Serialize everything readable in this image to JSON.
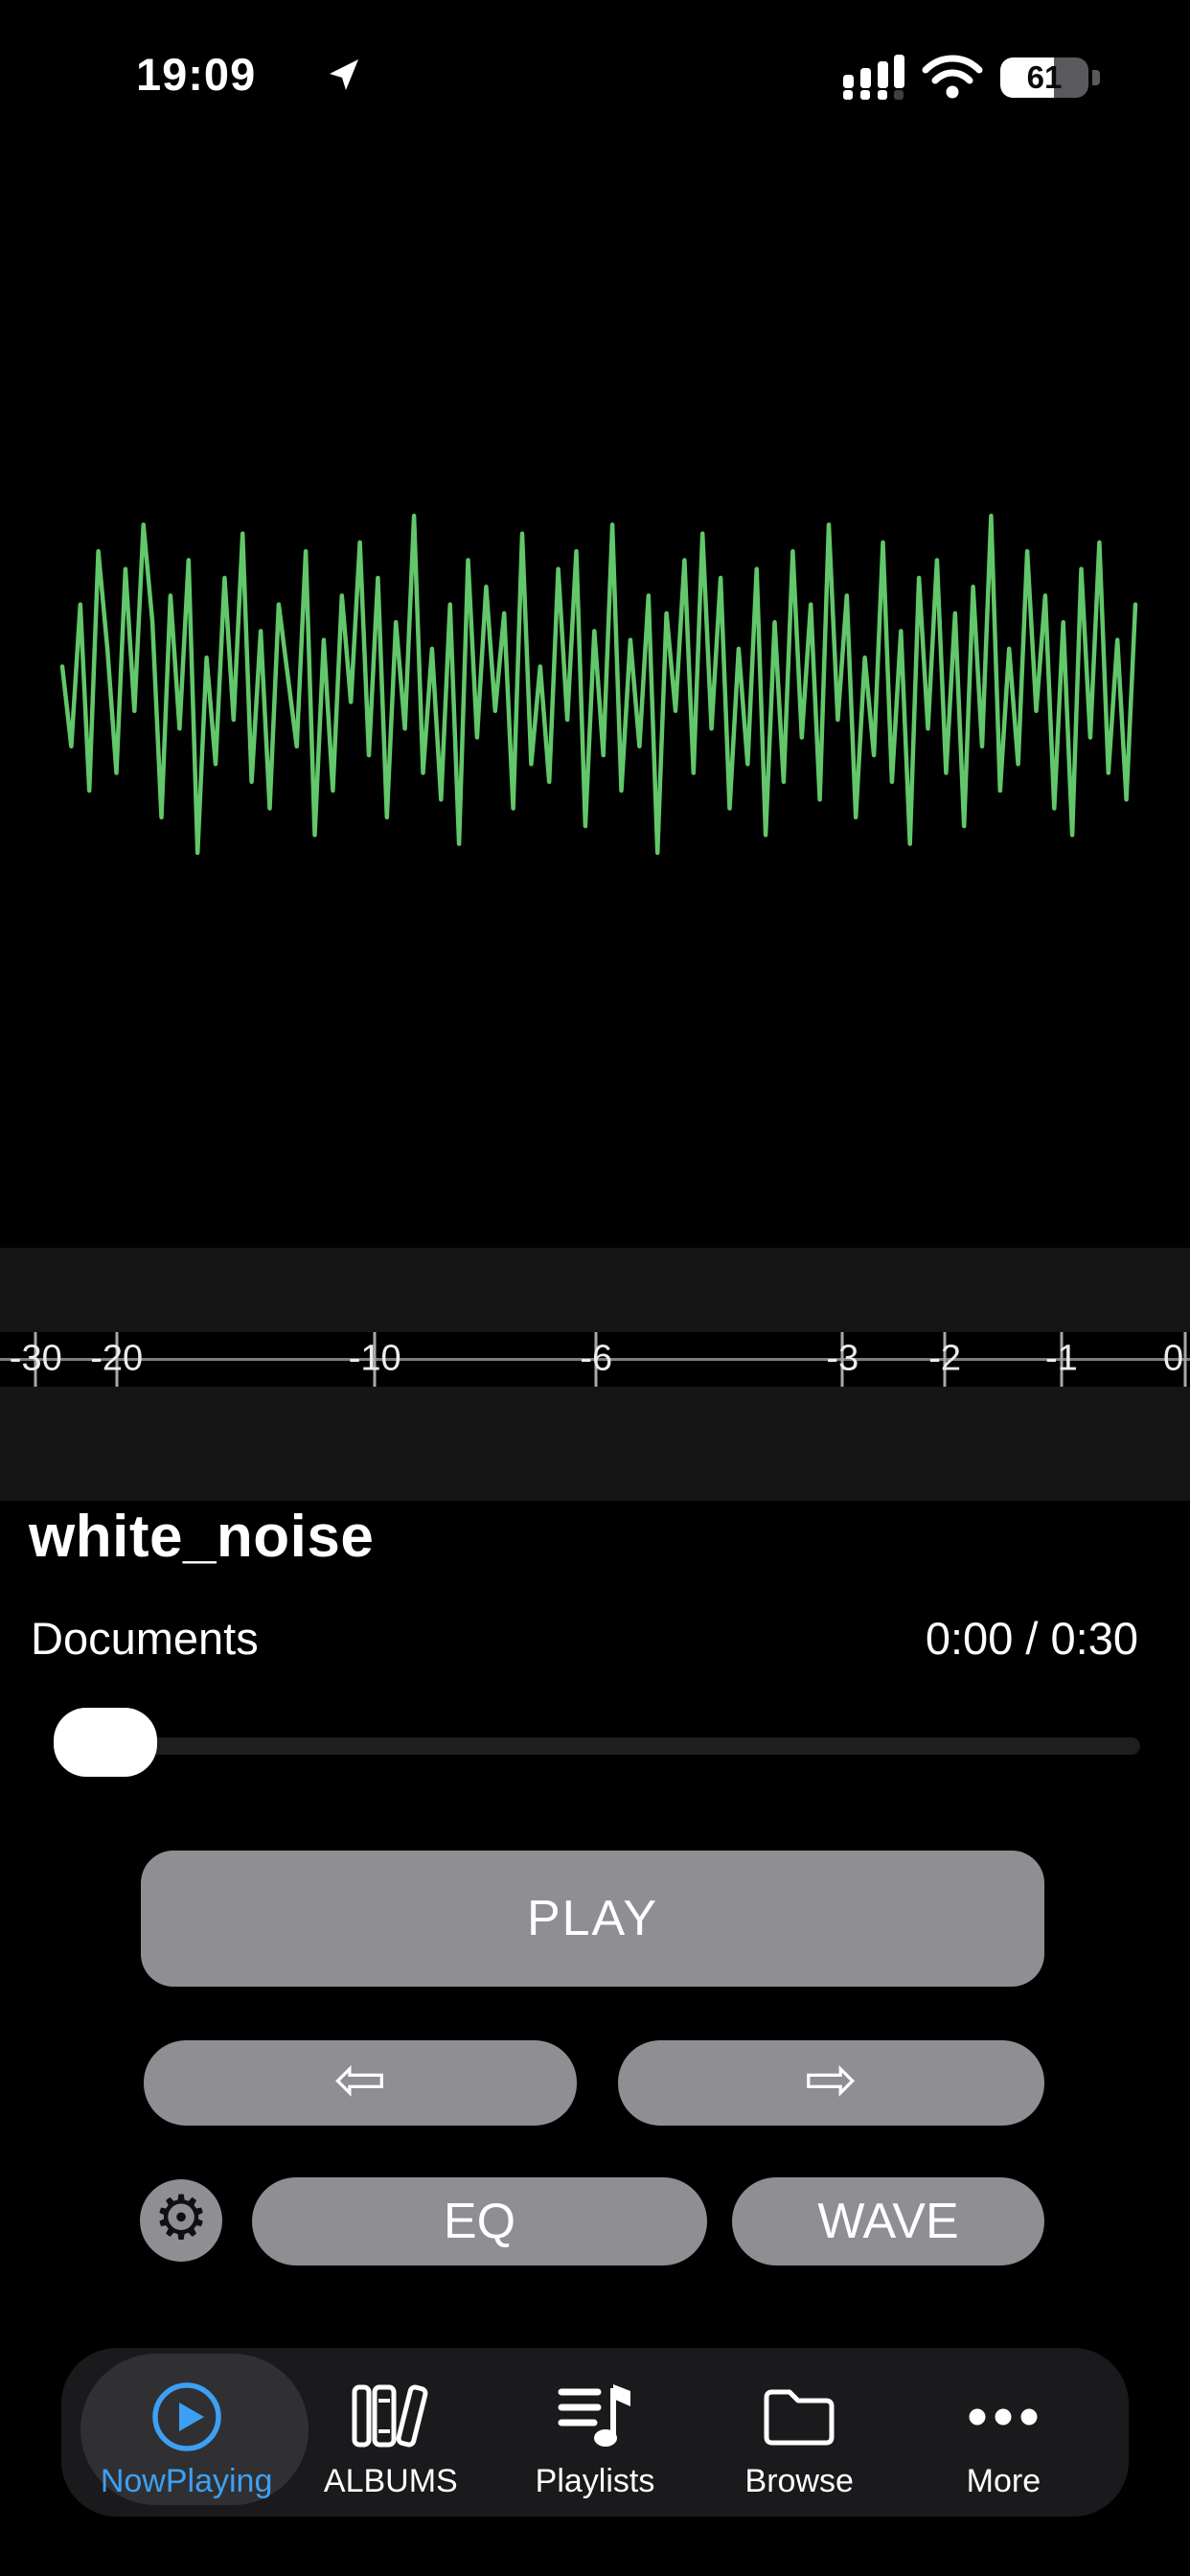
{
  "status_bar": {
    "time": "19:09",
    "battery_percent": "61",
    "icons": [
      "location-icon",
      "cellular-signal-icon",
      "wifi-icon",
      "battery-indicator"
    ]
  },
  "waveform": {
    "color": "#62c76a",
    "points": [
      0.1,
      -0.35,
      0.45,
      -0.6,
      0.75,
      0.2,
      -0.5,
      0.65,
      -0.15,
      0.9,
      0.35,
      -0.75,
      0.5,
      -0.25,
      0.7,
      -0.95,
      0.15,
      -0.45,
      0.6,
      -0.2,
      0.85,
      -0.55,
      0.3,
      -0.7,
      0.45,
      0.05,
      -0.35,
      0.75,
      -0.85,
      0.25,
      -0.6,
      0.5,
      -0.1,
      0.8,
      -0.4,
      0.6,
      -0.75,
      0.35,
      -0.25,
      0.95,
      -0.5,
      0.2,
      -0.65,
      0.45,
      -0.9,
      0.7,
      -0.3,
      0.55,
      -0.15,
      0.4,
      -0.7,
      0.85,
      -0.45,
      0.1,
      -0.55,
      0.65,
      -0.2,
      0.75,
      -0.8,
      0.3,
      -0.4,
      0.9,
      -0.6,
      0.25,
      -0.35,
      0.5,
      -0.95,
      0.4,
      -0.15,
      0.7,
      -0.5,
      0.85,
      -0.25,
      0.6,
      -0.7,
      0.2,
      -0.45,
      0.65,
      -0.85,
      0.35,
      -0.55,
      0.75,
      -0.3,
      0.45,
      -0.65,
      0.9,
      -0.2,
      0.5,
      -0.75,
      0.15,
      -0.4,
      0.8,
      -0.55,
      0.3,
      -0.9,
      0.6,
      -0.25,
      0.7,
      -0.5,
      0.4,
      -0.8,
      0.55,
      -0.35,
      0.95,
      -0.6,
      0.2,
      -0.45,
      0.75,
      -0.15,
      0.5,
      -0.7,
      0.35,
      -0.85,
      0.65,
      -0.3,
      0.8,
      -0.5,
      0.25,
      -0.65,
      0.45
    ]
  },
  "ruler": {
    "ticks": [
      {
        "label": "-30",
        "pos": 3.0
      },
      {
        "label": "-20",
        "pos": 9.8
      },
      {
        "label": "-10",
        "pos": 31.5
      },
      {
        "label": "-6",
        "pos": 50.1
      },
      {
        "label": "-3",
        "pos": 70.8
      },
      {
        "label": "-2",
        "pos": 79.4
      },
      {
        "label": "-1",
        "pos": 89.2
      },
      {
        "label": "0",
        "pos": 99.6
      }
    ]
  },
  "now_playing": {
    "title": "white_noise",
    "source": "Documents",
    "time_display": "0:00 / 0:30",
    "progress_percent": 0
  },
  "controls": {
    "play_label": "PLAY",
    "prev_icon": "⇦",
    "next_icon": "⇨",
    "gear_icon": "⚙",
    "eq_label": "EQ",
    "wave_label": "WAVE"
  },
  "tab_bar": {
    "items": [
      {
        "label": "NowPlaying",
        "icon": "play-circle-icon",
        "active": true
      },
      {
        "label": "ALBUMS",
        "icon": "books-icon",
        "active": false
      },
      {
        "label": "Playlists",
        "icon": "music-note-list-icon",
        "active": false
      },
      {
        "label": "Browse",
        "icon": "folder-icon",
        "active": false
      },
      {
        "label": "More",
        "icon": "ellipsis-icon",
        "active": false
      }
    ]
  },
  "colors": {
    "accent_blue": "#3da0f4",
    "waveform_green": "#62c76a",
    "button_gray": "#8e8e93"
  }
}
